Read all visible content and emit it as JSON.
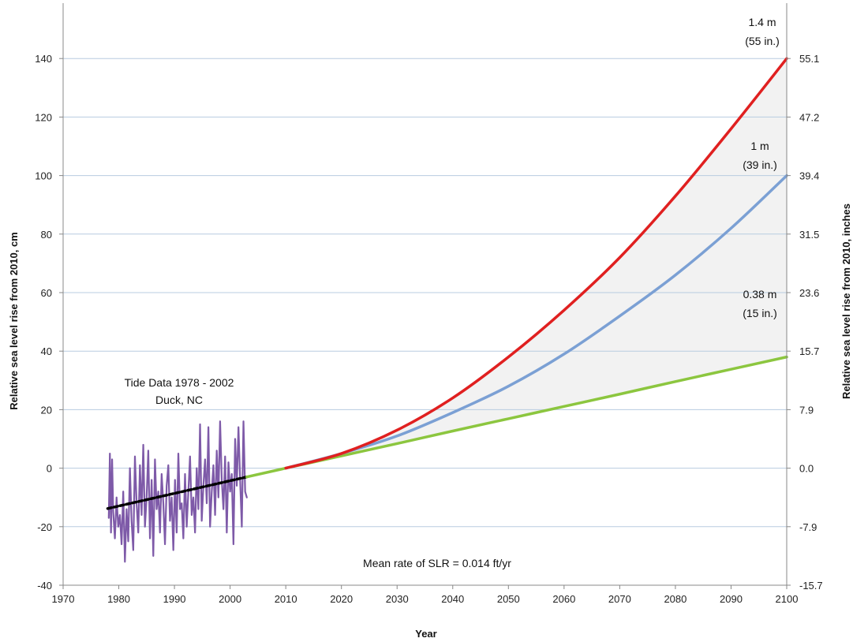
{
  "chart_data": {
    "type": "line",
    "xlabel": "Year",
    "ylabel": "Relative sea level rise from 2010, cm",
    "y2label": "Relative sea level rise from 2010, inches",
    "xlim": [
      1970,
      2100
    ],
    "ylim": [
      -40,
      160
    ],
    "grid": true,
    "x_ticks": [
      "1970",
      "1980",
      "1990",
      "2000",
      "2010",
      "2020",
      "2030",
      "2040",
      "2050",
      "2060",
      "2070",
      "2080",
      "2090",
      "2100"
    ],
    "y_ticks": [
      "-40",
      "-20",
      "0",
      "20",
      "40",
      "60",
      "80",
      "100",
      "120",
      "140"
    ],
    "y2_ticks": [
      "-15.7",
      "-7.9",
      "0.0",
      "7.9",
      "15.7",
      "23.6",
      "31.5",
      "39.4",
      "47.2",
      "55.1"
    ],
    "annotations": {
      "tide_title": "Tide Data 1978 - 2002",
      "tide_location": "Duck, NC",
      "mean_rate": "Mean rate of SLR =  0.014 ft/yr",
      "high_m": "1.4 m",
      "high_in": "(55 in.)",
      "mid_m": "1 m",
      "mid_in": "(39 in.)",
      "low_m": "0.38 m",
      "low_in": "(15 in.)"
    },
    "series": [
      {
        "color": "#e02020",
        "x": [
          2010,
          2020,
          2030,
          2040,
          2050,
          2060,
          2070,
          2080,
          2090,
          2100
        ],
        "y": [
          0,
          5,
          13,
          24,
          38,
          54,
          72,
          93,
          116,
          140
        ]
      },
      {
        "color": "#7ba0d4",
        "x": [
          2010,
          2020,
          2030,
          2040,
          2050,
          2060,
          2070,
          2080,
          2090,
          2100
        ],
        "y": [
          0,
          5,
          11,
          19,
          28,
          39,
          52,
          66,
          82,
          100
        ]
      },
      {
        "color": "#8cc63f",
        "x": [
          2003,
          2010,
          2020,
          2030,
          2040,
          2050,
          2060,
          2070,
          2080,
          2090,
          2100
        ],
        "y": [
          -3,
          0,
          4.2,
          8.4,
          12.7,
          16.9,
          21.1,
          25.3,
          29.6,
          33.8,
          38
        ]
      },
      {
        "color": "#000000",
        "style": "dashed",
        "x": [
          1978,
          2003
        ],
        "y": [
          -13.8,
          -3
        ]
      },
      {
        "color": "#7e5aa8",
        "x": [
          1978.2,
          1978.4,
          1978.6,
          1978.8,
          1979.0,
          1979.3,
          1979.6,
          1979.9,
          1980.2,
          1980.5,
          1980.8,
          1981.1,
          1981.4,
          1981.7,
          1982.0,
          1982.3,
          1982.6,
          1982.9,
          1983.2,
          1983.5,
          1983.8,
          1984.1,
          1984.4,
          1984.7,
          1985.0,
          1985.3,
          1985.6,
          1985.9,
          1986.2,
          1986.5,
          1986.8,
          1987.1,
          1987.4,
          1987.7,
          1988.0,
          1988.3,
          1988.6,
          1988.9,
          1989.2,
          1989.5,
          1989.8,
          1990.1,
          1990.4,
          1990.7,
          1991.0,
          1991.3,
          1991.6,
          1991.9,
          1992.2,
          1992.5,
          1992.8,
          1993.1,
          1993.4,
          1993.7,
          1994.0,
          1994.3,
          1994.6,
          1994.9,
          1995.2,
          1995.5,
          1995.8,
          1996.1,
          1996.4,
          1996.7,
          1997.0,
          1997.3,
          1997.6,
          1997.9,
          1998.2,
          1998.5,
          1998.8,
          1999.1,
          1999.4,
          1999.7,
          2000.0,
          2000.3,
          2000.6,
          2000.9,
          2001.2,
          2001.5,
          2001.8,
          2002.1,
          2002.4,
          2002.7,
          2003.0
        ],
        "y": [
          -17,
          5,
          -22,
          3,
          -15,
          -24,
          -10,
          -20,
          -16,
          -26,
          -8,
          -32,
          -14,
          -25,
          0,
          -18,
          -28,
          4,
          -12,
          -22,
          1,
          -16,
          8,
          -20,
          -10,
          6,
          -24,
          -4,
          -30,
          3,
          -14,
          -8,
          -22,
          -2,
          -12,
          -26,
          -6,
          1,
          -18,
          -10,
          -28,
          -4,
          -22,
          5,
          -14,
          -12,
          -24,
          -2,
          -20,
          -8,
          4,
          -16,
          -10,
          -22,
          0,
          -14,
          15,
          -18,
          -6,
          3,
          -12,
          14,
          -20,
          -8,
          1,
          -16,
          6,
          -10,
          16,
          -4,
          -14,
          4,
          -22,
          2,
          -8,
          -2,
          -26,
          10,
          -6,
          14,
          -4,
          -20,
          16,
          -8,
          -10
        ]
      }
    ]
  }
}
